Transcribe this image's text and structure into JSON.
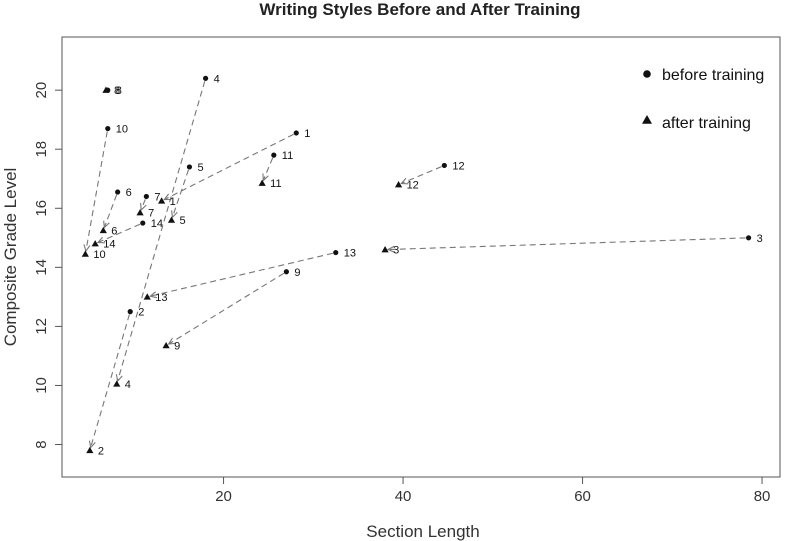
{
  "chart_data": {
    "type": "scatter",
    "title": "Writing Styles Before and After Training",
    "xlabel": "Section Length",
    "ylabel": "Composite Grade Level",
    "xlim": [
      2,
      82
    ],
    "ylim": [
      6.9,
      21.8
    ],
    "xticks": [
      20,
      40,
      60,
      80
    ],
    "yticks": [
      8,
      10,
      12,
      14,
      16,
      18,
      20
    ],
    "grid": false,
    "legend_position": "top-right",
    "series": [
      {
        "name": "before training",
        "marker": "circle",
        "points": [
          {
            "label": "1",
            "x": 28.1,
            "y": 18.55
          },
          {
            "label": "2",
            "x": 9.6,
            "y": 12.5
          },
          {
            "label": "3",
            "x": 78.5,
            "y": 15.0
          },
          {
            "label": "4",
            "x": 18.0,
            "y": 20.4
          },
          {
            "label": "5",
            "x": 16.2,
            "y": 17.4
          },
          {
            "label": "6",
            "x": 8.2,
            "y": 16.55
          },
          {
            "label": "7",
            "x": 11.4,
            "y": 16.4
          },
          {
            "label": "8",
            "x": 7.1,
            "y": 20.0
          },
          {
            "label": "9",
            "x": 27.0,
            "y": 13.85
          },
          {
            "label": "10",
            "x": 7.1,
            "y": 18.7
          },
          {
            "label": "11",
            "x": 25.6,
            "y": 17.8
          },
          {
            "label": "12",
            "x": 44.6,
            "y": 17.45
          },
          {
            "label": "13",
            "x": 32.5,
            "y": 14.5
          },
          {
            "label": "14",
            "x": 11.0,
            "y": 15.5
          }
        ]
      },
      {
        "name": "after training",
        "marker": "triangle",
        "points": [
          {
            "label": "1",
            "x": 13.1,
            "y": 16.25
          },
          {
            "label": "2",
            "x": 5.1,
            "y": 7.8
          },
          {
            "label": "3",
            "x": 38.0,
            "y": 14.6
          },
          {
            "label": "4",
            "x": 8.1,
            "y": 10.05
          },
          {
            "label": "5",
            "x": 14.2,
            "y": 15.6
          },
          {
            "label": "6",
            "x": 6.6,
            "y": 15.25
          },
          {
            "label": "7",
            "x": 10.7,
            "y": 15.85
          },
          {
            "label": "8",
            "x": 6.9,
            "y": 20.0
          },
          {
            "label": "9",
            "x": 13.6,
            "y": 11.35
          },
          {
            "label": "10",
            "x": 4.6,
            "y": 14.45
          },
          {
            "label": "11",
            "x": 24.3,
            "y": 16.85
          },
          {
            "label": "12",
            "x": 39.5,
            "y": 16.8
          },
          {
            "label": "13",
            "x": 11.5,
            "y": 13.0
          },
          {
            "label": "14",
            "x": 5.7,
            "y": 14.8
          }
        ]
      }
    ],
    "arrows": "dashed arrows from each before-training point to the matching after-training point"
  }
}
